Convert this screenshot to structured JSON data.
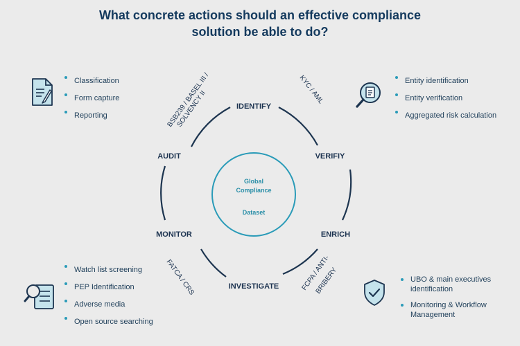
{
  "title": {
    "line1": "What concrete actions should an effective compliance",
    "line2": "solution be able to do?"
  },
  "cycle": {
    "center": {
      "line1": "Global",
      "line2": "Compliance",
      "line3": "Dataset"
    },
    "nodes": {
      "identify": "IDENTIFY",
      "verify": "VERIFIY",
      "enrich": "ENRICH",
      "investigate": "INVESTIGATE",
      "monitor": "MONITOR",
      "audit": "AUDIT"
    },
    "regulations": {
      "top_left": {
        "line1": "BSB239 / BASEL III /",
        "line2": "SOLVENCY II"
      },
      "top_right": "KYC / AML",
      "bottom_right": {
        "line1": "FCPA / ANTI-",
        "line2": "BRIBERY"
      },
      "bottom_left": "FATCA / CRS"
    }
  },
  "panels": {
    "top_left": {
      "icon": "document-icon",
      "items": [
        "Classification",
        "Form capture",
        "Reporting"
      ]
    },
    "top_right": {
      "icon": "search-document-icon",
      "items": [
        "Entity identification",
        "Entity verification",
        "Aggregated risk calculation"
      ]
    },
    "bottom_left": {
      "icon": "search-list-icon",
      "items": [
        "Watch list screening",
        "PEP Identification",
        "Adverse media",
        "Open source searching"
      ]
    },
    "bottom_right": {
      "icon": "shield-check-icon",
      "items": [
        "UBO & main executives identification",
        "Monitoring & Workflow Management"
      ]
    }
  },
  "colors": {
    "ring": "#1d3550",
    "accent": "#2a9bb8",
    "title": "#143a5e"
  }
}
